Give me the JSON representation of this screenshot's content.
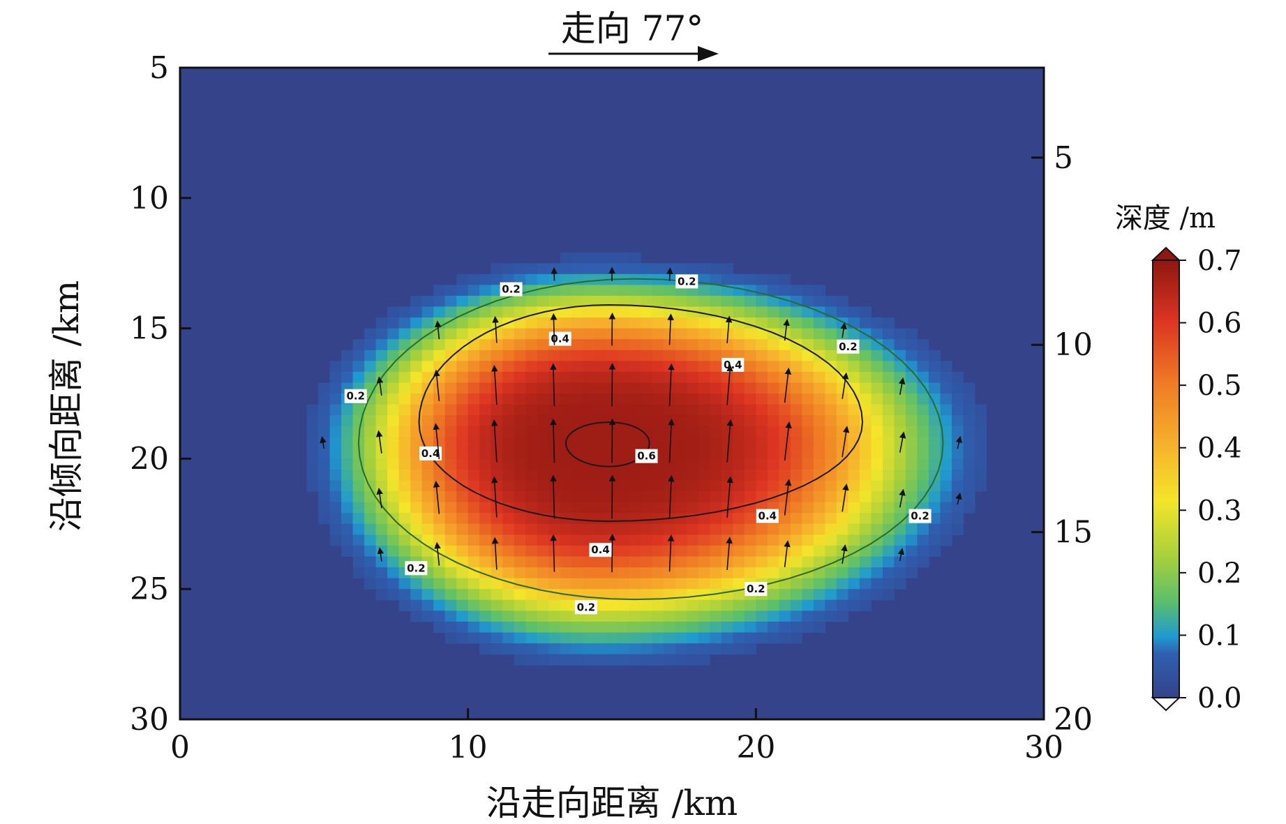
{
  "chart_data": {
    "type": "heatmap",
    "title": "",
    "xlabel": "沿走向距离 /km",
    "ylabel": "沿倾向距离 /km",
    "xlim": [
      0,
      30
    ],
    "ylim": [
      30,
      5
    ],
    "x_ticks": [
      "0",
      "10",
      "20",
      "30"
    ],
    "y_ticks": [
      "5",
      "10",
      "15",
      "20",
      "25",
      "30"
    ],
    "right_axis": {
      "lim": [
        2.6,
        20
      ],
      "ticks": [
        "5",
        "10",
        "15",
        "20"
      ]
    },
    "strike_annotation": "走向 77°",
    "colorbar": {
      "title": "深度 /m",
      "range": [
        0.0,
        0.7
      ],
      "ticks": [
        "0.7",
        "0.6",
        "0.5",
        "0.4",
        "0.3",
        "0.2",
        "0.1",
        "0.0"
      ]
    },
    "slip_field": {
      "description_units": "m",
      "peak_value": 0.68,
      "peak_location": [
        14.5,
        19.5
      ],
      "extent_x": [
        4.5,
        29
      ],
      "extent_y": [
        12,
        28
      ]
    },
    "contours": [
      {
        "level": "0.6",
        "label": "0.6"
      },
      {
        "level": "0.4",
        "label": "0.4"
      },
      {
        "level": "0.2",
        "label": "0.2"
      }
    ],
    "colors": {
      "background": "#34438a",
      "low": "#2f6fbd",
      "mid": "#8dc840",
      "yellow": "#f4e52a",
      "orange": "#f19a27",
      "high": "#dd3522",
      "max": "#a31a12"
    }
  }
}
